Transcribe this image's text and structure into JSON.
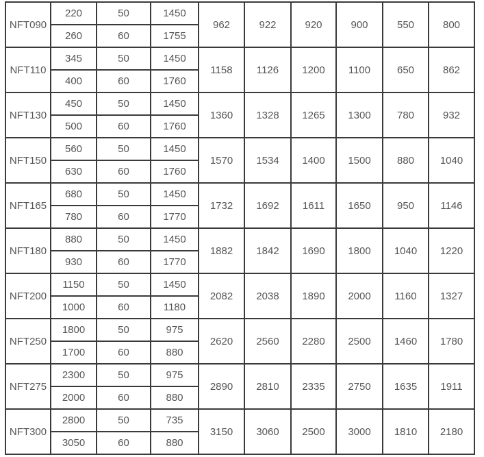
{
  "table": {
    "rows": [
      {
        "model": "NFT090",
        "sub": [
          [
            "220",
            "50",
            "1450"
          ],
          [
            "260",
            "60",
            "1755"
          ]
        ],
        "vals": [
          "962",
          "922",
          "920",
          "900",
          "550",
          "800"
        ]
      },
      {
        "model": "NFT110",
        "sub": [
          [
            "345",
            "50",
            "1450"
          ],
          [
            "400",
            "60",
            "1760"
          ]
        ],
        "vals": [
          "1158",
          "1126",
          "1200",
          "1100",
          "650",
          "862"
        ]
      },
      {
        "model": "NFT130",
        "sub": [
          [
            "450",
            "50",
            "1450"
          ],
          [
            "500",
            "60",
            "1760"
          ]
        ],
        "vals": [
          "1360",
          "1328",
          "1265",
          "1300",
          "780",
          "932"
        ]
      },
      {
        "model": "NFT150",
        "sub": [
          [
            "560",
            "50",
            "1450"
          ],
          [
            "630",
            "60",
            "1760"
          ]
        ],
        "vals": [
          "1570",
          "1534",
          "1400",
          "1500",
          "880",
          "1040"
        ]
      },
      {
        "model": "NFT165",
        "sub": [
          [
            "680",
            "50",
            "1450"
          ],
          [
            "780",
            "60",
            "1770"
          ]
        ],
        "vals": [
          "1732",
          "1692",
          "1611",
          "1650",
          "950",
          "1146"
        ]
      },
      {
        "model": "NFT180",
        "sub": [
          [
            "880",
            "50",
            "1450"
          ],
          [
            "930",
            "60",
            "1770"
          ]
        ],
        "vals": [
          "1882",
          "1842",
          "1690",
          "1800",
          "1040",
          "1220"
        ]
      },
      {
        "model": "NFT200",
        "sub": [
          [
            "1150",
            "50",
            "1450"
          ],
          [
            "1000",
            "60",
            "1180"
          ]
        ],
        "vals": [
          "2082",
          "2038",
          "1890",
          "2000",
          "1160",
          "1327"
        ]
      },
      {
        "model": "NFT250",
        "sub": [
          [
            "1800",
            "50",
            "975"
          ],
          [
            "1700",
            "60",
            "880"
          ]
        ],
        "vals": [
          "2620",
          "2560",
          "2280",
          "2500",
          "1460",
          "1780"
        ]
      },
      {
        "model": "NFT275",
        "sub": [
          [
            "2300",
            "50",
            "975"
          ],
          [
            "2000",
            "60",
            "880"
          ]
        ],
        "vals": [
          "2890",
          "2810",
          "2335",
          "2750",
          "1635",
          "1911"
        ]
      },
      {
        "model": "NFT300",
        "sub": [
          [
            "2800",
            "50",
            "735"
          ],
          [
            "3050",
            "60",
            "880"
          ]
        ],
        "vals": [
          "3150",
          "3060",
          "2500",
          "3000",
          "1810",
          "2180"
        ]
      }
    ]
  }
}
